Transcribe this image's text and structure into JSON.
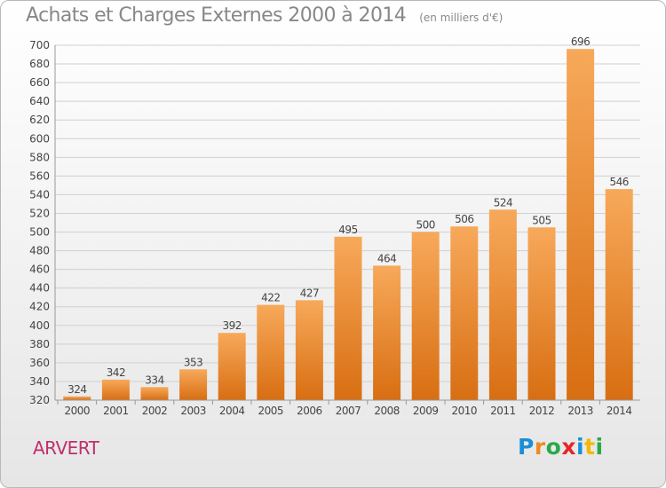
{
  "title": "Achats et Charges Externes 2000 à 2014",
  "subtitle": "(en milliers d'€)",
  "city": "ARVERT",
  "logo": {
    "letters": [
      "P",
      "r",
      "o",
      "x",
      "i",
      "t",
      "i"
    ],
    "colors": [
      "#1a8fd6",
      "#f08a1e",
      "#2aa84a",
      "#e8232a",
      "#1a8fd6",
      "#f5b700",
      "#2aa84a"
    ]
  },
  "colors": {
    "bar_light": "#f7a95a",
    "bar_dark": "#d86e12",
    "grid": "#d0d0d0",
    "text": "#444444"
  },
  "chart_data": {
    "type": "bar",
    "categories": [
      "2000",
      "2001",
      "2002",
      "2003",
      "2004",
      "2005",
      "2006",
      "2007",
      "2008",
      "2009",
      "2010",
      "2011",
      "2012",
      "2013",
      "2014"
    ],
    "values": [
      324,
      342,
      334,
      353,
      392,
      422,
      427,
      495,
      464,
      500,
      506,
      524,
      505,
      696,
      546
    ],
    "ylim": [
      320,
      700
    ],
    "yticks": [
      320,
      340,
      360,
      380,
      400,
      420,
      440,
      460,
      480,
      500,
      520,
      540,
      560,
      580,
      600,
      620,
      640,
      660,
      680,
      700
    ],
    "grid": true,
    "legend": false
  }
}
